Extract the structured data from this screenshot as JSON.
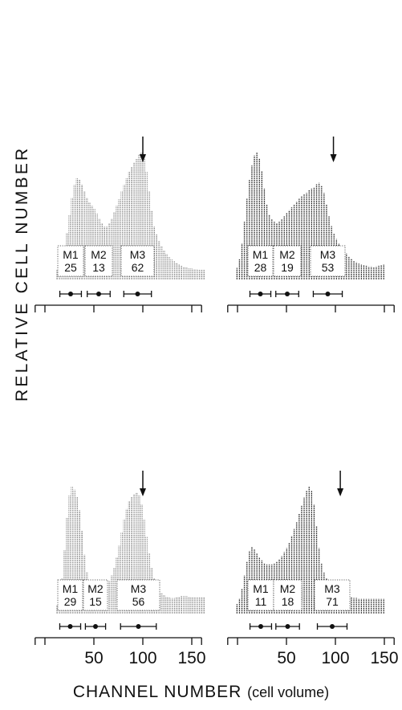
{
  "ylabel": "RELATIVE CELL NUMBER",
  "xlabel": {
    "main": "CHANNEL NUMBER",
    "sub": "(cell volume)"
  },
  "chart_data": [
    {
      "type": "bar",
      "panel": "top-left",
      "x_ticks": [],
      "x_tick_labels": [],
      "arrow_at": 100,
      "values": [
        12,
        18,
        26,
        40,
        58,
        80,
        102,
        118,
        126,
        124,
        118,
        110,
        102,
        96,
        92,
        88,
        82,
        76,
        70,
        66,
        66,
        70,
        76,
        84,
        92,
        100,
        110,
        118,
        126,
        134,
        140,
        146,
        150,
        156,
        158,
        150,
        134,
        110,
        86,
        66,
        56,
        48,
        42,
        36,
        32,
        28,
        25,
        23,
        21,
        19,
        17,
        16,
        15,
        14,
        14,
        13,
        13,
        12,
        12,
        12
      ],
      "regions": [
        {
          "label": "M1",
          "value": "25"
        },
        {
          "label": "M2",
          "value": "13"
        },
        {
          "label": "M3",
          "value": "62"
        }
      ]
    },
    {
      "type": "bar",
      "panel": "top-right",
      "x_ticks": [],
      "x_tick_labels": [],
      "arrow_at": 98,
      "values": [
        16,
        28,
        50,
        80,
        112,
        138,
        158,
        172,
        176,
        168,
        150,
        126,
        104,
        90,
        84,
        80,
        78,
        80,
        84,
        88,
        92,
        96,
        100,
        104,
        108,
        112,
        116,
        118,
        120,
        124,
        126,
        128,
        132,
        134,
        130,
        120,
        104,
        88,
        74,
        64,
        56,
        50,
        44,
        40,
        36,
        32,
        29,
        26,
        24,
        22,
        21,
        20,
        19,
        18,
        18,
        17,
        18,
        19,
        20,
        21
      ],
      "regions": [
        {
          "label": "M1",
          "value": "28"
        },
        {
          "label": "M2",
          "value": "19"
        },
        {
          "label": "M3",
          "value": "53"
        }
      ]
    },
    {
      "type": "bar",
      "panel": "bottom-left",
      "x_ticks": [
        0,
        50,
        100,
        150
      ],
      "x_tick_labels": [
        "",
        "50",
        "100",
        "150"
      ],
      "arrow_at": 100,
      "values": [
        12,
        24,
        48,
        86,
        130,
        160,
        172,
        168,
        158,
        140,
        112,
        80,
        56,
        42,
        34,
        30,
        28,
        28,
        30,
        34,
        38,
        44,
        52,
        62,
        76,
        92,
        110,
        128,
        142,
        152,
        158,
        162,
        164,
        160,
        148,
        128,
        104,
        82,
        62,
        48,
        38,
        32,
        28,
        25,
        23,
        22,
        21,
        21,
        22,
        23,
        24,
        24,
        24,
        23,
        22,
        22,
        22,
        22,
        22,
        22
      ],
      "regions": [
        {
          "label": "M1",
          "value": "29"
        },
        {
          "label": "M2",
          "value": "15"
        },
        {
          "label": "M3",
          "value": "56"
        }
      ]
    },
    {
      "type": "bar",
      "panel": "bottom-right",
      "x_ticks": [
        0,
        50,
        100,
        150
      ],
      "x_tick_labels": [
        "",
        "50",
        "100",
        "150"
      ],
      "arrow_at": 105,
      "values": [
        14,
        22,
        36,
        56,
        76,
        92,
        98,
        94,
        88,
        82,
        78,
        74,
        72,
        72,
        72,
        74,
        76,
        80,
        84,
        90,
        96,
        104,
        114,
        124,
        134,
        146,
        158,
        170,
        180,
        186,
        180,
        160,
        128,
        96,
        74,
        60,
        52,
        46,
        42,
        38,
        35,
        32,
        30,
        28,
        26,
        25,
        24,
        23,
        23,
        22,
        22,
        22,
        22,
        22,
        22,
        22,
        22,
        22,
        22,
        22
      ],
      "regions": [
        {
          "label": "M1",
          "value": "11"
        },
        {
          "label": "M2",
          "value": "18"
        },
        {
          "label": "M3",
          "value": "71"
        }
      ]
    }
  ]
}
